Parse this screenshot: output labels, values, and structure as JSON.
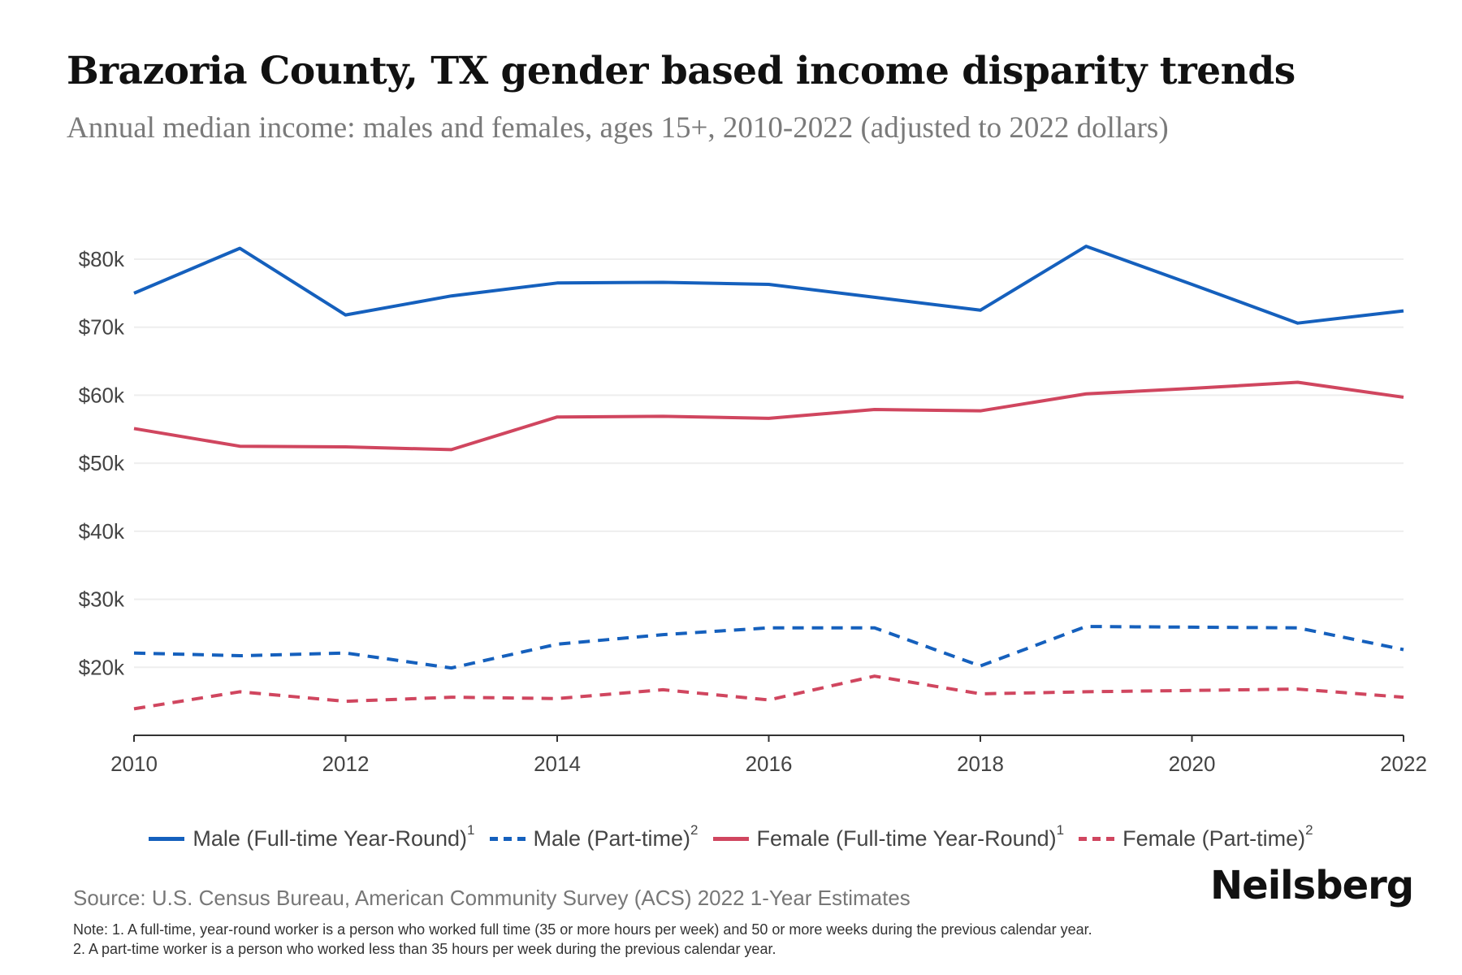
{
  "header": {
    "title": "Brazoria County, TX gender based income disparity trends",
    "subtitle": "Annual median income: males and females, ages 15+, 2010-2022 (adjusted to 2022 dollars)"
  },
  "chart_data": {
    "type": "line",
    "title": "Brazoria County, TX gender based income disparity trends",
    "subtitle": "Annual median income: males and females, ages 15+, 2010-2022 (adjusted to 2022 dollars)",
    "xlabel": "",
    "ylabel": "",
    "x": [
      2010,
      2011,
      2012,
      2013,
      2014,
      2015,
      2016,
      2017,
      2018,
      2019,
      2020,
      2021,
      2022
    ],
    "x_ticks": [
      2010,
      2012,
      2014,
      2016,
      2018,
      2020,
      2022
    ],
    "x_tick_labels": [
      "2010",
      "2012",
      "2014",
      "2016",
      "2018",
      "2020",
      "2022"
    ],
    "xlim": [
      2010,
      2022
    ],
    "y_ticks": [
      20000,
      30000,
      40000,
      50000,
      60000,
      70000,
      80000
    ],
    "y_tick_labels": [
      "$20k",
      "$30k",
      "$40k",
      "$50k",
      "$60k",
      "$70k",
      "$80k"
    ],
    "ylim": [
      10000,
      80000
    ],
    "grid": "horizontal",
    "legend_position": "bottom-center",
    "series": [
      {
        "name": "Male (Full-time Year-Round)",
        "footnote": "1",
        "color": "#1560bd",
        "style": "solid",
        "values": [
          75000,
          81600,
          71800,
          74600,
          76500,
          76600,
          76300,
          74400,
          72500,
          81900,
          76300,
          70600,
          72400
        ]
      },
      {
        "name": "Male (Part-time)",
        "footnote": "2",
        "color": "#1560bd",
        "style": "dashed",
        "values": [
          22100,
          21700,
          22100,
          19900,
          23400,
          24800,
          25800,
          25800,
          20200,
          26000,
          25900,
          25800,
          22600
        ]
      },
      {
        "name": "Female (Full-time Year-Round)",
        "footnote": "1",
        "color": "#d0465f",
        "style": "solid",
        "values": [
          55100,
          52500,
          52400,
          52000,
          56800,
          56900,
          56600,
          57900,
          57700,
          60200,
          61000,
          61900,
          59700
        ]
      },
      {
        "name": "Female (Part-time)",
        "footnote": "2",
        "color": "#d0465f",
        "style": "dashed",
        "values": [
          13900,
          16400,
          15000,
          15600,
          15400,
          16700,
          15200,
          18700,
          16100,
          16400,
          16600,
          16800,
          15600
        ]
      }
    ]
  },
  "footer": {
    "source": "Source: U.S. Census Bureau, American Community Survey (ACS) 2022 1-Year Estimates",
    "note1": "Note: 1. A full-time, year-round worker is a person who worked full time (35 or more hours per week) and 50 or more weeks during the previous calendar year.",
    "note2": "2. A part-time worker is a person who worked less than 35 hours per week during the previous calendar year.",
    "brand": "Neilsberg"
  }
}
